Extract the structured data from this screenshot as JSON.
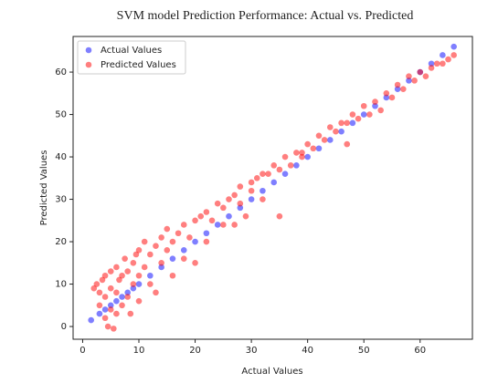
{
  "chart_data": {
    "type": "scatter",
    "title": "SVM model Prediction Performance: Actual vs. Predicted",
    "x_label": "Actual Values",
    "y_label": "Predicted Values",
    "xlim": [
      -1.7,
      69.3
    ],
    "ylim": [
      -3.0,
      68.4
    ],
    "xticks": [
      0,
      10,
      20,
      30,
      40,
      50,
      60
    ],
    "yticks": [
      0,
      10,
      20,
      30,
      40,
      50,
      60
    ],
    "legend": "upper left",
    "series": [
      {
        "name": "Actual Values",
        "color": "#0000ff",
        "x": [
          1.5,
          3,
          4,
          5,
          6,
          7,
          8,
          9,
          10,
          12,
          14,
          16,
          18,
          20,
          22,
          24,
          26,
          28,
          30,
          32,
          34,
          36,
          38,
          40,
          42,
          44,
          46,
          48,
          50,
          52,
          54,
          56,
          58,
          60,
          62,
          64,
          66
        ],
        "values": [
          1.5,
          3,
          4,
          5,
          6,
          7,
          8,
          9,
          10,
          12,
          14,
          16,
          18,
          20,
          22,
          24,
          26,
          28,
          30,
          32,
          34,
          36,
          38,
          40,
          42,
          44,
          46,
          48,
          50,
          52,
          54,
          56,
          58,
          60,
          62,
          64,
          66
        ]
      },
      {
        "name": "Predicted Values",
        "color": "#ff0000",
        "x": [
          2,
          2.5,
          3,
          3,
          3.5,
          4,
          4,
          4,
          4.5,
          5,
          5,
          5,
          5.5,
          6,
          6,
          6,
          6.5,
          7,
          7,
          7.5,
          8,
          8,
          8.5,
          9,
          9,
          9.5,
          10,
          10,
          10,
          11,
          11,
          12,
          12,
          13,
          13,
          14,
          14,
          15,
          15,
          16,
          16,
          17,
          18,
          18,
          19,
          20,
          20,
          21,
          22,
          22,
          23,
          24,
          25,
          25,
          26,
          27,
          27,
          28,
          28,
          29,
          30,
          30,
          31,
          32,
          32,
          33,
          34,
          35,
          35,
          36,
          37,
          38,
          39,
          40,
          41,
          42,
          43,
          44,
          45,
          46,
          47,
          48,
          49,
          50,
          51,
          52,
          53,
          54,
          55,
          56,
          57,
          58,
          59,
          60,
          61,
          62,
          63,
          64,
          65,
          66,
          39,
          47
        ],
        "values": [
          9,
          10,
          5,
          8,
          11,
          2,
          7,
          12,
          0,
          4,
          9,
          13,
          -0.5,
          3,
          8,
          14,
          11,
          5,
          12,
          16,
          7,
          13,
          3,
          10,
          15,
          17,
          6,
          12,
          18,
          14,
          20,
          10,
          17,
          19,
          8,
          15,
          21,
          18,
          23,
          12,
          20,
          22,
          16,
          24,
          21,
          15,
          25,
          26,
          20,
          27,
          25,
          29,
          24,
          28,
          30,
          24,
          31,
          29,
          33,
          26,
          32,
          34,
          35,
          30,
          36,
          36,
          38,
          37,
          26,
          40,
          38,
          41,
          40,
          43,
          42,
          45,
          44,
          47,
          46,
          48,
          48,
          50,
          49,
          52,
          50,
          53,
          51,
          55,
          54,
          57,
          56,
          59,
          58,
          60,
          59,
          61,
          62,
          62,
          63,
          64,
          41,
          43
        ]
      }
    ]
  }
}
